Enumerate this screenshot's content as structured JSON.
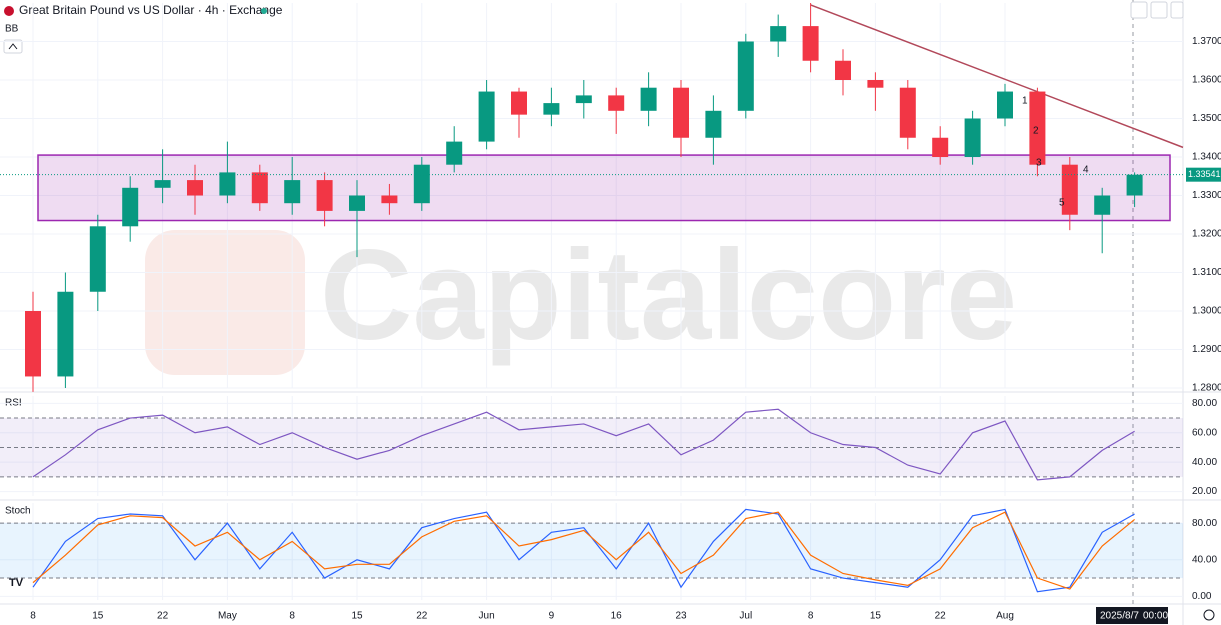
{
  "header": {
    "title": "Great Britain Pound vs US Dollar · 4h · Exchange"
  },
  "watermark": "Capitalcore",
  "cursor": {
    "date": "2025/8/7",
    "time": "00:00"
  },
  "chart_data": [
    {
      "type": "candlestick",
      "label": "BB",
      "categories": [
        "8",
        null,
        "15",
        null,
        "22",
        null,
        "May",
        null,
        "8",
        null,
        "15",
        null,
        "22",
        null,
        "Jun",
        null,
        "9",
        null,
        "16",
        null,
        "23",
        null,
        "Jul",
        null,
        "8",
        null,
        "15",
        null,
        "22",
        null,
        "Aug",
        null,
        null,
        null,
        null
      ],
      "open": [
        1.3,
        1.283,
        1.305,
        1.322,
        1.332,
        1.334,
        1.33,
        1.336,
        1.328,
        1.334,
        1.326,
        1.33,
        1.328,
        1.338,
        1.344,
        1.357,
        1.351,
        1.354,
        1.356,
        1.352,
        1.358,
        1.345,
        1.352,
        1.37,
        1.374,
        1.365,
        1.36,
        1.358,
        1.345,
        1.34,
        1.35,
        1.357,
        1.338,
        1.325,
        1.33
      ],
      "high": [
        1.305,
        1.31,
        1.325,
        1.335,
        1.342,
        1.338,
        1.344,
        1.338,
        1.34,
        1.336,
        1.334,
        1.333,
        1.34,
        1.348,
        1.36,
        1.358,
        1.358,
        1.36,
        1.358,
        1.362,
        1.36,
        1.356,
        1.372,
        1.377,
        1.38,
        1.368,
        1.362,
        1.36,
        1.348,
        1.352,
        1.359,
        1.358,
        1.34,
        1.332,
        1.336
      ],
      "low": [
        1.279,
        1.28,
        1.3,
        1.318,
        1.328,
        1.325,
        1.328,
        1.326,
        1.325,
        1.322,
        1.314,
        1.325,
        1.326,
        1.336,
        1.342,
        1.345,
        1.348,
        1.35,
        1.346,
        1.348,
        1.34,
        1.338,
        1.35,
        1.366,
        1.362,
        1.356,
        1.352,
        1.342,
        1.338,
        1.338,
        1.348,
        1.335,
        1.321,
        1.315,
        1.327
      ],
      "close": [
        1.283,
        1.305,
        1.322,
        1.332,
        1.334,
        1.33,
        1.336,
        1.328,
        1.334,
        1.326,
        1.33,
        1.328,
        1.338,
        1.344,
        1.357,
        1.351,
        1.354,
        1.356,
        1.352,
        1.358,
        1.345,
        1.352,
        1.37,
        1.374,
        1.365,
        1.36,
        1.358,
        1.345,
        1.34,
        1.35,
        1.357,
        1.338,
        1.325,
        1.33,
        1.33541
      ],
      "up_color": "#089981",
      "down_color": "#f23645",
      "ylim": [
        1.28,
        1.38
      ],
      "yticks": [
        {
          "value": 1.28,
          "label": "1.28000"
        },
        {
          "value": 1.29,
          "label": "1.29000"
        },
        {
          "value": 1.3,
          "label": "1.30000"
        },
        {
          "value": 1.31,
          "label": "1.31000"
        },
        {
          "value": 1.32,
          "label": "1.32000"
        },
        {
          "value": 1.33,
          "label": "1.33000"
        },
        {
          "value": 1.34,
          "label": "1.34000"
        },
        {
          "value": 1.35,
          "label": "1.35000"
        },
        {
          "value": 1.36,
          "label": "1.36000"
        },
        {
          "value": 1.37,
          "label": "1.37000"
        }
      ],
      "last_price": 1.33541,
      "zone": [
        1.3235,
        1.3405
      ],
      "trendline": [
        1.3795,
        1.3425
      ],
      "annotations": [
        "1",
        "2",
        "3",
        "4",
        "5"
      ],
      "grid": true
    },
    {
      "type": "line",
      "label": "RSI",
      "values": [
        30,
        45,
        62,
        70,
        72,
        60,
        64,
        52,
        60,
        50,
        42,
        48,
        58,
        66,
        74,
        62,
        64,
        66,
        58,
        66,
        45,
        55,
        74,
        76,
        60,
        52,
        50,
        38,
        32,
        60,
        68,
        28,
        30,
        48,
        61
      ],
      "color": "#7e57c2",
      "ylim": [
        17,
        85
      ],
      "yticks": [
        {
          "value": 20,
          "label": "20.00"
        },
        {
          "value": 40,
          "label": "40.00"
        },
        {
          "value": 60,
          "label": "60.00"
        },
        {
          "value": 80,
          "label": "80.00"
        }
      ],
      "levels": [
        70,
        50,
        30
      ],
      "band_color": "#7e57c2"
    },
    {
      "type": "line",
      "label": "Stoch",
      "series": [
        {
          "color": "#2962ff",
          "values": [
            10,
            60,
            85,
            90,
            88,
            40,
            80,
            30,
            70,
            20,
            40,
            30,
            75,
            85,
            92,
            40,
            70,
            75,
            30,
            80,
            10,
            60,
            95,
            90,
            30,
            20,
            15,
            10,
            40,
            88,
            95,
            5,
            10,
            70,
            90
          ]
        },
        {
          "color": "#ff6d00",
          "values": [
            15,
            45,
            78,
            88,
            86,
            55,
            70,
            40,
            60,
            30,
            35,
            35,
            65,
            82,
            88,
            55,
            62,
            72,
            40,
            70,
            25,
            45,
            85,
            92,
            45,
            25,
            18,
            12,
            30,
            75,
            92,
            20,
            8,
            55,
            84
          ]
        }
      ],
      "ylim": [
        -4,
        102
      ],
      "yticks": [
        {
          "value": 0,
          "label": "0.00"
        },
        {
          "value": 40,
          "label": "40.00"
        },
        {
          "value": 80,
          "label": "80.00"
        }
      ],
      "levels": [
        80,
        20
      ],
      "band_color": "#2196f3"
    }
  ]
}
